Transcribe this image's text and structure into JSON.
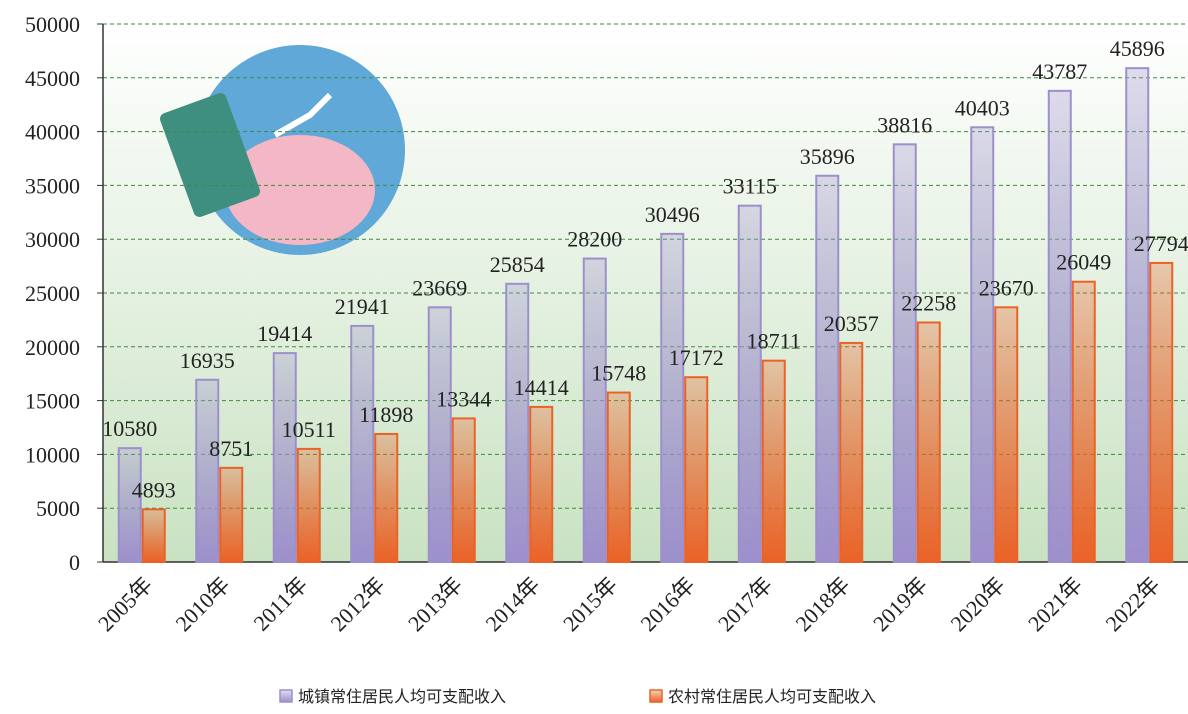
{
  "chart_data": {
    "type": "bar",
    "categories": [
      "2005年",
      "2010年",
      "2011年",
      "2012年",
      "2013年",
      "2014年",
      "2015年",
      "2016年",
      "2017年",
      "2018年",
      "2019年",
      "2020年",
      "2021年",
      "2022年"
    ],
    "series": [
      {
        "name": "城镇常住居民人均可支配收入",
        "color": "#9d8fcc",
        "values": [
          10580,
          16935,
          19414,
          21941,
          23669,
          25854,
          28200,
          30496,
          33115,
          35896,
          38816,
          40403,
          43787,
          45896
        ]
      },
      {
        "name": "农村常住居民人均可支配收入",
        "color": "#ea6227",
        "values": [
          4893,
          8751,
          10511,
          11898,
          13344,
          14414,
          15748,
          17172,
          18711,
          20357,
          22258,
          23670,
          26049,
          27794
        ]
      }
    ],
    "ylim": [
      0,
      50000
    ],
    "yticks": [
      0,
      5000,
      10000,
      15000,
      20000,
      25000,
      30000,
      35000,
      40000,
      45000,
      50000
    ],
    "grid": true
  }
}
